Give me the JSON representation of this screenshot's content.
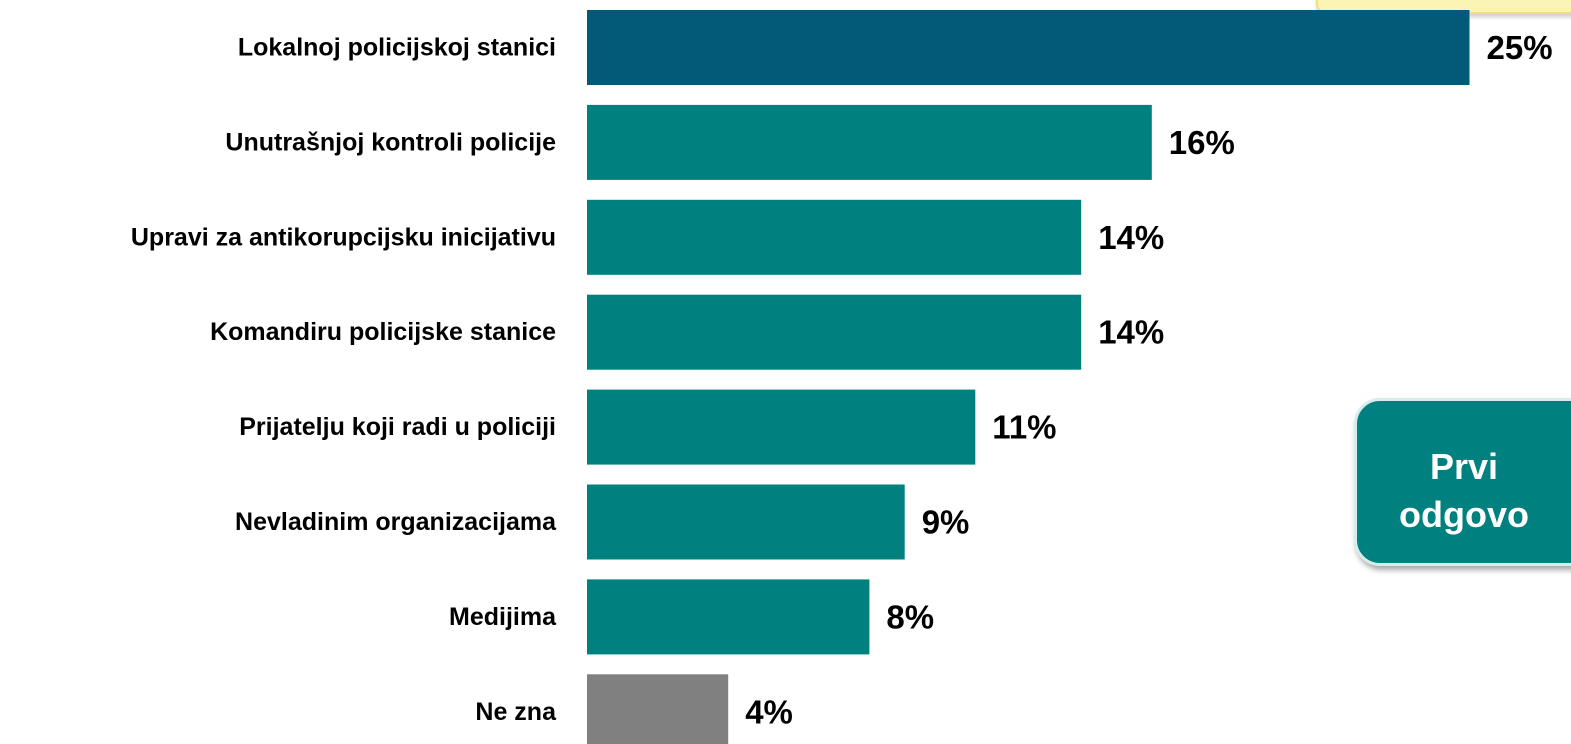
{
  "chart_data": {
    "type": "bar",
    "orientation": "horizontal",
    "categories": [
      "Lokalnoj policijskoj stanici",
      "Unutrašnjoj kontroli policije",
      "Upravi za antikorupcijsku inicijativu",
      "Komandiru policijske stanice",
      "Prijatelju koji radi u policiji",
      "Nevladinim organizacijama",
      "Medijima",
      "Ne zna"
    ],
    "values": [
      25,
      16,
      14,
      14,
      11,
      9,
      8,
      4
    ],
    "value_labels": [
      "25%",
      "16%",
      "14%",
      "14%",
      "11%",
      "9%",
      "8%",
      "4%"
    ],
    "unit": "%",
    "colors": [
      "#035a78",
      "#00807f",
      "#00807f",
      "#00807f",
      "#00807f",
      "#00807f",
      "#00807f",
      "#808080"
    ],
    "title": "",
    "xlabel": "",
    "ylabel": "",
    "grid": false,
    "legend": "none"
  },
  "callout": {
    "line1": "Prvi",
    "line2": "odgovo"
  }
}
